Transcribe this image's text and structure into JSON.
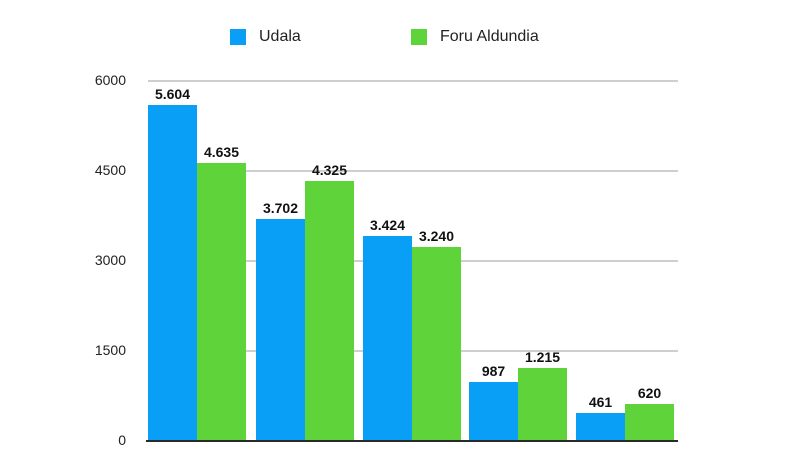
{
  "chart_data": {
    "type": "bar",
    "title": "",
    "xlabel": "",
    "ylabel": "",
    "categories": [
      "",
      "",
      "",
      "",
      ""
    ],
    "series": [
      {
        "name": "Udala",
        "color": "#0a9ff7",
        "values": [
          5604,
          3702,
          3424,
          987,
          461
        ],
        "labels": [
          "5.604",
          "3.702",
          "3.424",
          "987",
          "461"
        ]
      },
      {
        "name": "Foru Aldundia",
        "color": "#5fd43a",
        "values": [
          4635,
          4325,
          3240,
          1215,
          620
        ],
        "labels": [
          "4.635",
          "4.325",
          "3.240",
          "1.215",
          "620"
        ]
      }
    ],
    "ylim": [
      0,
      6000
    ],
    "yticks": [
      "0",
      "1500",
      "3000",
      "4500",
      "6000"
    ],
    "grid": true,
    "legend_position": "top"
  },
  "legend": {
    "items": [
      {
        "label": "Udala",
        "color": "#0a9ff7"
      },
      {
        "label": "Foru Aldundia",
        "color": "#5fd43a"
      }
    ]
  }
}
